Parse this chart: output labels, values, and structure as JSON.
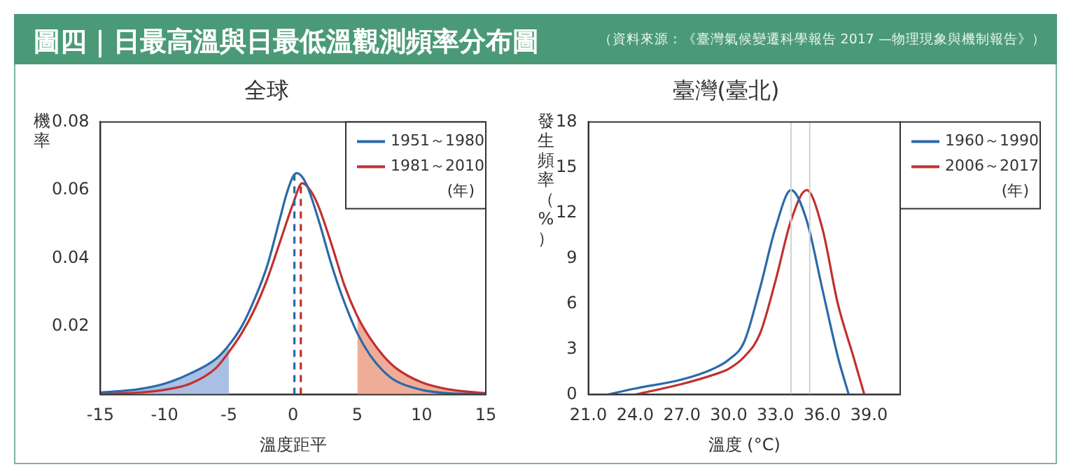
{
  "chart_data": [
    {
      "type": "other",
      "title": "圖四｜日最高溫與日最低溫觀測頻率分布圖",
      "annotations": [
        "（資料來源：《臺灣氣候變遷科學報告 2017 —物理現象與機制報告》）"
      ]
    },
    {
      "type": "line",
      "title": "全球",
      "xlabel": "溫度距平",
      "ylabel": "機率",
      "legend_title": "(年)",
      "legend": "top right",
      "grid": false,
      "marker": "none",
      "xlim": [
        -15,
        15
      ],
      "xticks": [
        -15,
        -10,
        -5,
        0,
        5,
        10,
        15
      ],
      "ylim": [
        0,
        0.08
      ],
      "yticks": [
        0.02,
        0.04,
        0.06,
        0.08
      ],
      "series": [
        {
          "type": "area",
          "color": "#a9bfe3",
          "x": [
            -15,
            -12,
            -10,
            -8,
            -6,
            -5
          ],
          "values": [
            0.0006,
            0.0016,
            0.0032,
            0.0062,
            0.0105,
            0.0145
          ]
        },
        {
          "type": "area",
          "color": "#efad98",
          "x": [
            5,
            6,
            7,
            8,
            10,
            12,
            15
          ],
          "values": [
            0.023,
            0.0165,
            0.0115,
            0.0078,
            0.0036,
            0.0016,
            0.0004
          ]
        },
        {
          "name": "1951～1980",
          "color": "#2a6aa8",
          "x": [
            -15,
            -12,
            -10,
            -8,
            -6,
            -5,
            -4,
            -3,
            -2,
            -1,
            -0.5,
            0,
            0.3,
            1,
            2,
            3,
            4,
            5,
            6,
            7,
            8,
            10,
            12,
            15
          ],
          "values": [
            0.0006,
            0.0016,
            0.0032,
            0.0062,
            0.0105,
            0.0145,
            0.02,
            0.028,
            0.038,
            0.052,
            0.059,
            0.064,
            0.065,
            0.062,
            0.051,
            0.038,
            0.027,
            0.018,
            0.0115,
            0.007,
            0.004,
            0.0014,
            0.0004,
            0.0001
          ]
        },
        {
          "name": "1981～2010",
          "color": "#c0312f",
          "x": [
            -15,
            -12,
            -10,
            -8,
            -6,
            -5,
            -4,
            -3,
            -2,
            -1,
            0,
            0.7,
            1.5,
            2,
            3,
            4,
            5,
            6,
            7,
            8,
            10,
            12,
            15
          ],
          "values": [
            0.0002,
            0.0006,
            0.0014,
            0.0032,
            0.0078,
            0.0125,
            0.018,
            0.025,
            0.034,
            0.045,
            0.056,
            0.062,
            0.059,
            0.055,
            0.044,
            0.032,
            0.023,
            0.0165,
            0.0115,
            0.0078,
            0.0036,
            0.0016,
            0.0004
          ]
        }
      ],
      "ref_lines": [
        {
          "axis": "x",
          "value": 0.1,
          "color": "#2a6aa8",
          "line_style": "dashed"
        },
        {
          "axis": "x",
          "value": 0.6,
          "color": "#c0312f",
          "line_style": "dashed"
        }
      ]
    },
    {
      "type": "line",
      "title": "臺灣(臺北)",
      "xlabel": "溫度 (°C)",
      "ylabel": "發生頻率（%）",
      "legend_title": "(年)",
      "legend": "right",
      "grid": false,
      "marker": "none",
      "xlim": [
        21,
        41
      ],
      "xticks": [
        {
          "value": 21,
          "label": "21.0"
        },
        {
          "value": 24,
          "label": "24.0"
        },
        {
          "value": 27,
          "label": "27.0"
        },
        {
          "value": 30,
          "label": "30.0"
        },
        {
          "value": 33,
          "label": "33.0"
        },
        {
          "value": 36,
          "label": "36.0"
        },
        {
          "value": 39,
          "label": "39.0"
        }
      ],
      "ylim": [
        0,
        18
      ],
      "yticks": [
        0,
        3,
        6,
        9,
        12,
        15,
        18
      ],
      "series": [
        {
          "name": "1960～1990",
          "color": "#2a6aa8",
          "x": [
            22.2,
            24,
            27,
            29,
            30,
            31,
            32,
            33,
            34,
            35,
            36,
            37,
            37.7
          ],
          "values": [
            0,
            0.4,
            1.0,
            1.7,
            2.3,
            3.5,
            7,
            11,
            13.5,
            11.5,
            7,
            2.5,
            0
          ]
        },
        {
          "name": "2006～2017",
          "color": "#c0312f",
          "x": [
            24,
            27,
            29,
            30,
            31,
            32,
            33,
            34,
            35,
            36,
            37,
            38,
            38.7
          ],
          "values": [
            0,
            0.7,
            1.3,
            1.7,
            2.5,
            4,
            7.5,
            11.5,
            13.5,
            11,
            6,
            2.5,
            0
          ]
        }
      ],
      "ref_lines": [
        {
          "axis": "x",
          "value": 34,
          "color": "#d0d0d0"
        },
        {
          "axis": "x",
          "value": 35.2,
          "color": "#d0d0d0"
        }
      ]
    }
  ]
}
